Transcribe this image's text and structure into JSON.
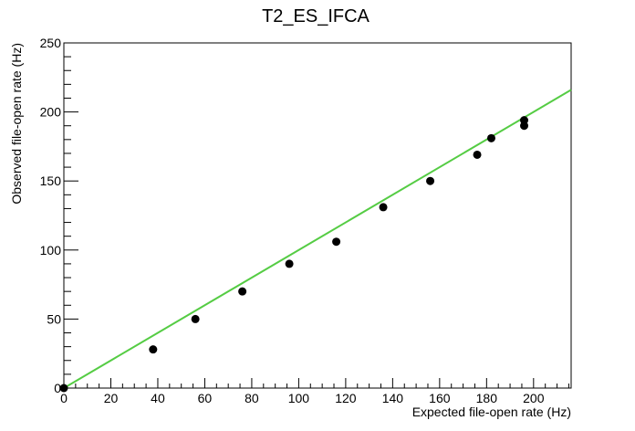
{
  "chart_data": {
    "type": "scatter",
    "title": "T2_ES_IFCA",
    "xlabel": "Expected file-open rate (Hz)",
    "ylabel": "Observed file-open rate (Hz)",
    "xlim": [
      0,
      216
    ],
    "ylim": [
      0,
      250
    ],
    "x_ticks": [
      0,
      20,
      40,
      60,
      80,
      100,
      120,
      140,
      160,
      180,
      200
    ],
    "y_ticks": [
      0,
      50,
      100,
      150,
      200,
      250
    ],
    "grid": false,
    "legend": "none",
    "series": [
      {
        "marker_color": "#000000",
        "points": [
          {
            "x": 0,
            "y": 0
          },
          {
            "x": 38,
            "y": 28
          },
          {
            "x": 56,
            "y": 50
          },
          {
            "x": 76,
            "y": 70
          },
          {
            "x": 96,
            "y": 90
          },
          {
            "x": 116,
            "y": 106
          },
          {
            "x": 136,
            "y": 131
          },
          {
            "x": 156,
            "y": 150
          },
          {
            "x": 176,
            "y": 169
          },
          {
            "x": 182,
            "y": 181
          },
          {
            "x": 196,
            "y": 190
          },
          {
            "x": 196,
            "y": 194
          }
        ]
      }
    ],
    "reference_line": {
      "color": "#55cc44",
      "from": {
        "x": 0,
        "y": 0
      },
      "to": {
        "x": 216,
        "y": 216
      }
    }
  }
}
